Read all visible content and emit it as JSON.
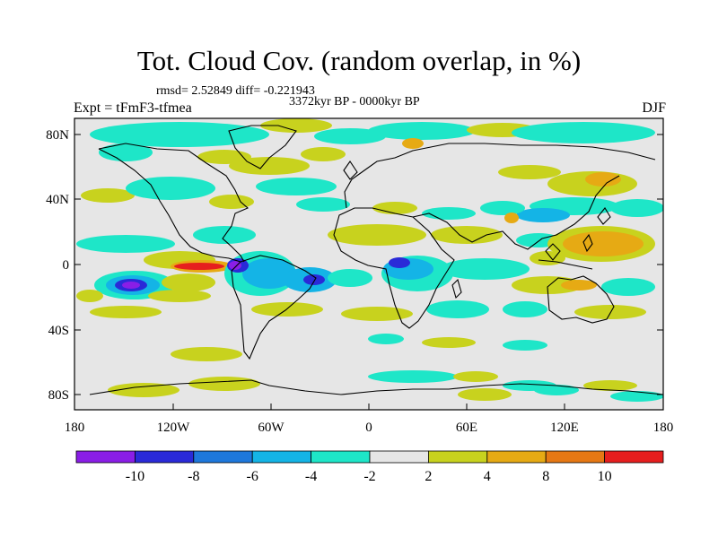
{
  "title": "Tot. Cloud Cov. (random overlap, in %)",
  "stats": "rmsd= 2.52849  diff= -0.221943",
  "period": "3372kyr BP - 0000kyr BP",
  "expt": "Expt = tFmF3-tfmea",
  "season": "DJF",
  "lat_labels": [
    "80N",
    "40N",
    "0",
    "40S",
    "80S"
  ],
  "lon_labels": [
    "180",
    "120W",
    "60W",
    "0",
    "60E",
    "120E",
    "180"
  ],
  "colorbar": {
    "tick_labels": [
      "-10",
      "-8",
      "-6",
      "-4",
      "-2",
      "2",
      "4",
      "8",
      "10"
    ],
    "colors": [
      "#8a1ee6",
      "#2a2ad8",
      "#1e78dc",
      "#14b4e6",
      "#1ee6c8",
      "#e6e6e6",
      "#c8d21e",
      "#e6aa14",
      "#e67814",
      "#e61e1e"
    ]
  },
  "colors": {
    "background_field": "#e6e6e6",
    "coastline": "#000000"
  }
}
